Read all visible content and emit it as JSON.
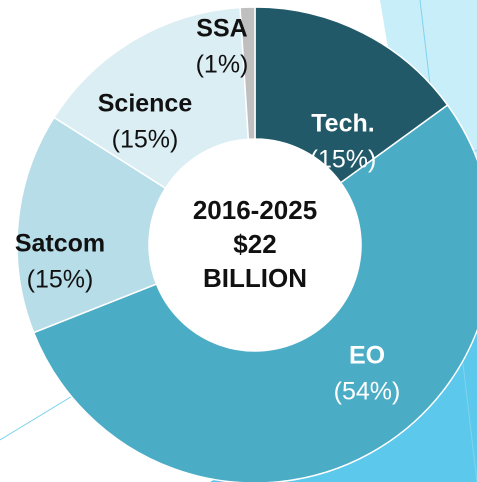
{
  "chart_data": {
    "type": "pie",
    "categories": [
      "Tech.",
      "EO",
      "Satcom",
      "Science",
      "SSA"
    ],
    "values": [
      15,
      54,
      15,
      15,
      1
    ],
    "value_labels": [
      "(15%)",
      "(54%)",
      "(15%)",
      "(15%)",
      "(1%)"
    ],
    "colors": [
      "#215968",
      "#4bacc6",
      "#b7dde8",
      "#dbeef4",
      "#bfbfbf"
    ],
    "center_text": [
      "2016-2025",
      "$22",
      "BILLION"
    ]
  }
}
